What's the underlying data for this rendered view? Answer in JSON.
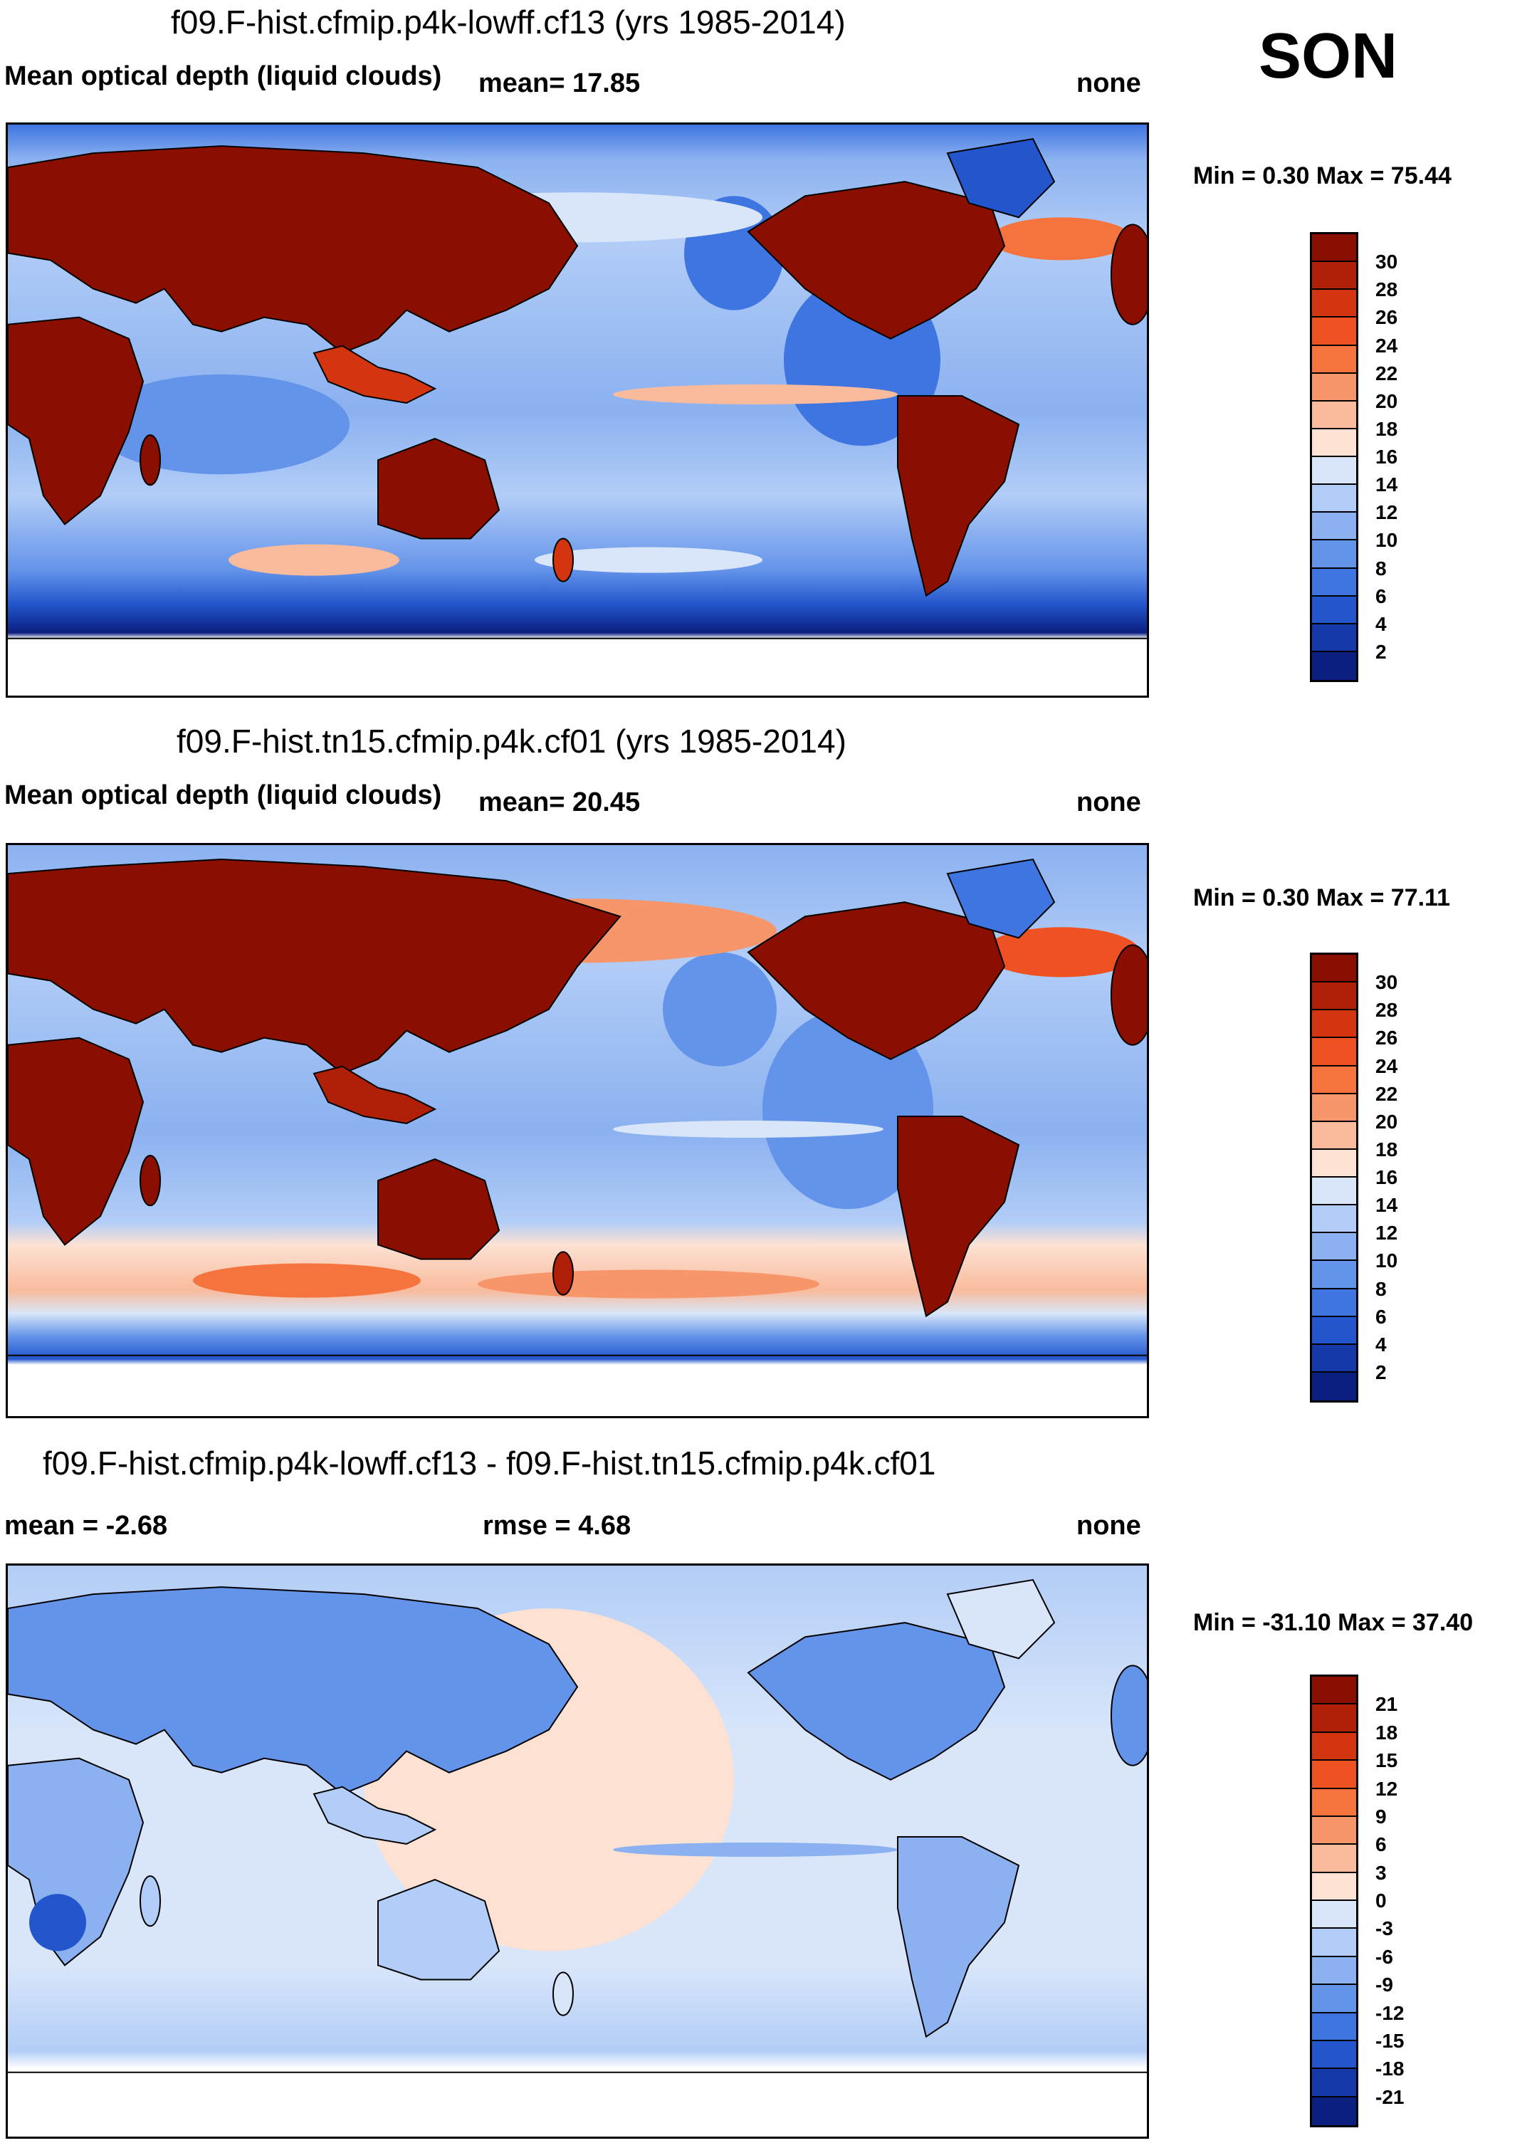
{
  "season": "SON",
  "panels": [
    {
      "title": "f09.F-hist.cfmip.p4k-lowff.cf13 (yrs 1985-2014)",
      "left_label": "Mean optical depth (liquid clouds)",
      "mid_label": "mean=  17.85",
      "right_label": "none",
      "minmax": "Min =   0.30 Max =  75.44",
      "colorbar": {
        "labels": [
          "30",
          "28",
          "26",
          "24",
          "22",
          "20",
          "18",
          "16",
          "14",
          "12",
          "10",
          "8",
          "6",
          "4",
          "2"
        ],
        "colors": [
          "#8b0f00",
          "#b01f08",
          "#d23510",
          "#ee5223",
          "#f5733d",
          "#f7966a",
          "#f9bb9c",
          "#fde2d4",
          "#d9e6fa",
          "#b2cdf7",
          "#8bb1f0",
          "#6494ea",
          "#3e75e0",
          "#2356cc",
          "#1539a8",
          "#0b1f80"
        ]
      }
    },
    {
      "title": "f09.F-hist.tn15.cfmip.p4k.cf01 (yrs 1985-2014)",
      "left_label": "Mean optical depth (liquid clouds)",
      "mid_label": "mean=  20.45",
      "right_label": "none",
      "minmax": "Min =   0.30 Max =  77.11",
      "colorbar": {
        "labels": [
          "30",
          "28",
          "26",
          "24",
          "22",
          "20",
          "18",
          "16",
          "14",
          "12",
          "10",
          "8",
          "6",
          "4",
          "2"
        ],
        "colors": [
          "#8b0f00",
          "#b01f08",
          "#d23510",
          "#ee5223",
          "#f5733d",
          "#f7966a",
          "#f9bb9c",
          "#fde2d4",
          "#d9e6fa",
          "#b2cdf7",
          "#8bb1f0",
          "#6494ea",
          "#3e75e0",
          "#2356cc",
          "#1539a8",
          "#0b1f80"
        ]
      }
    },
    {
      "title": "f09.F-hist.cfmip.p4k-lowff.cf13 - f09.F-hist.tn15.cfmip.p4k.cf01",
      "left_label": "mean =  -2.68",
      "mid_label": "rmse =   4.68",
      "right_label": "none",
      "minmax": "Min = -31.10 Max =  37.40",
      "colorbar": {
        "labels": [
          "21",
          "18",
          "15",
          "12",
          "9",
          "6",
          "3",
          "0",
          "-3",
          "-6",
          "-9",
          "-12",
          "-15",
          "-18",
          "-21"
        ],
        "colors": [
          "#8b0f00",
          "#b01f08",
          "#d23510",
          "#ee5223",
          "#f5733d",
          "#f7966a",
          "#f9bb9c",
          "#fde2d4",
          "#d9e6fa",
          "#b2cdf7",
          "#8bb1f0",
          "#6494ea",
          "#3e75e0",
          "#2356cc",
          "#1539a8",
          "#0b1f80"
        ]
      }
    }
  ]
}
